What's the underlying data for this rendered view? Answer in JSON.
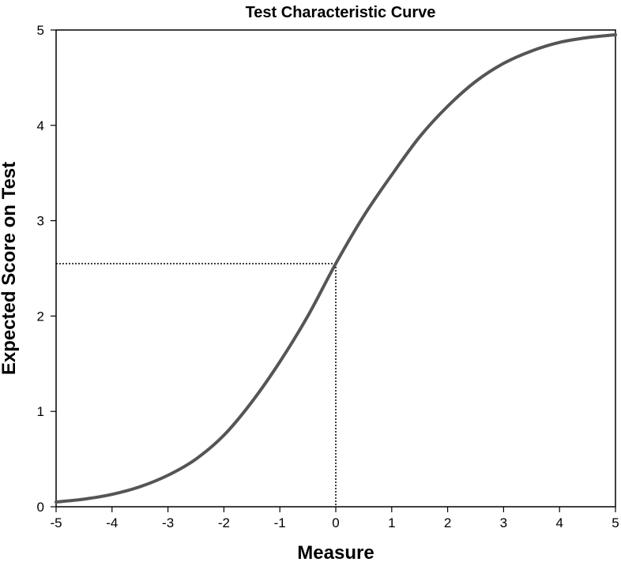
{
  "chart_data": {
    "type": "line",
    "title": "Test Characteristic Curve",
    "xlabel": "Measure",
    "ylabel": "Expected Score on Test",
    "xlim": [
      -5,
      5
    ],
    "ylim": [
      0,
      5
    ],
    "xticks": [
      "-5",
      "-4",
      "-3",
      "-2",
      "-1",
      "0",
      "1",
      "2",
      "3",
      "4",
      "5"
    ],
    "yticks": [
      "0",
      "1",
      "2",
      "3",
      "4",
      "5"
    ],
    "grid": false,
    "legend": "none",
    "series": [
      {
        "color": "#555555",
        "x": [
          -5,
          -4.5,
          -4,
          -3.5,
          -3,
          -2.5,
          -2,
          -1.5,
          -1,
          -0.5,
          0,
          0.5,
          1,
          1.5,
          2,
          2.5,
          3,
          3.5,
          4,
          4.5,
          5
        ],
        "y": [
          0.05,
          0.08,
          0.13,
          0.21,
          0.33,
          0.5,
          0.75,
          1.1,
          1.52,
          2.0,
          2.55,
          3.05,
          3.48,
          3.88,
          4.2,
          4.46,
          4.65,
          4.78,
          4.87,
          4.92,
          4.95
        ]
      }
    ],
    "reference_lines": [
      {
        "style": "dotted",
        "x": 0,
        "y": 2.55
      }
    ]
  }
}
